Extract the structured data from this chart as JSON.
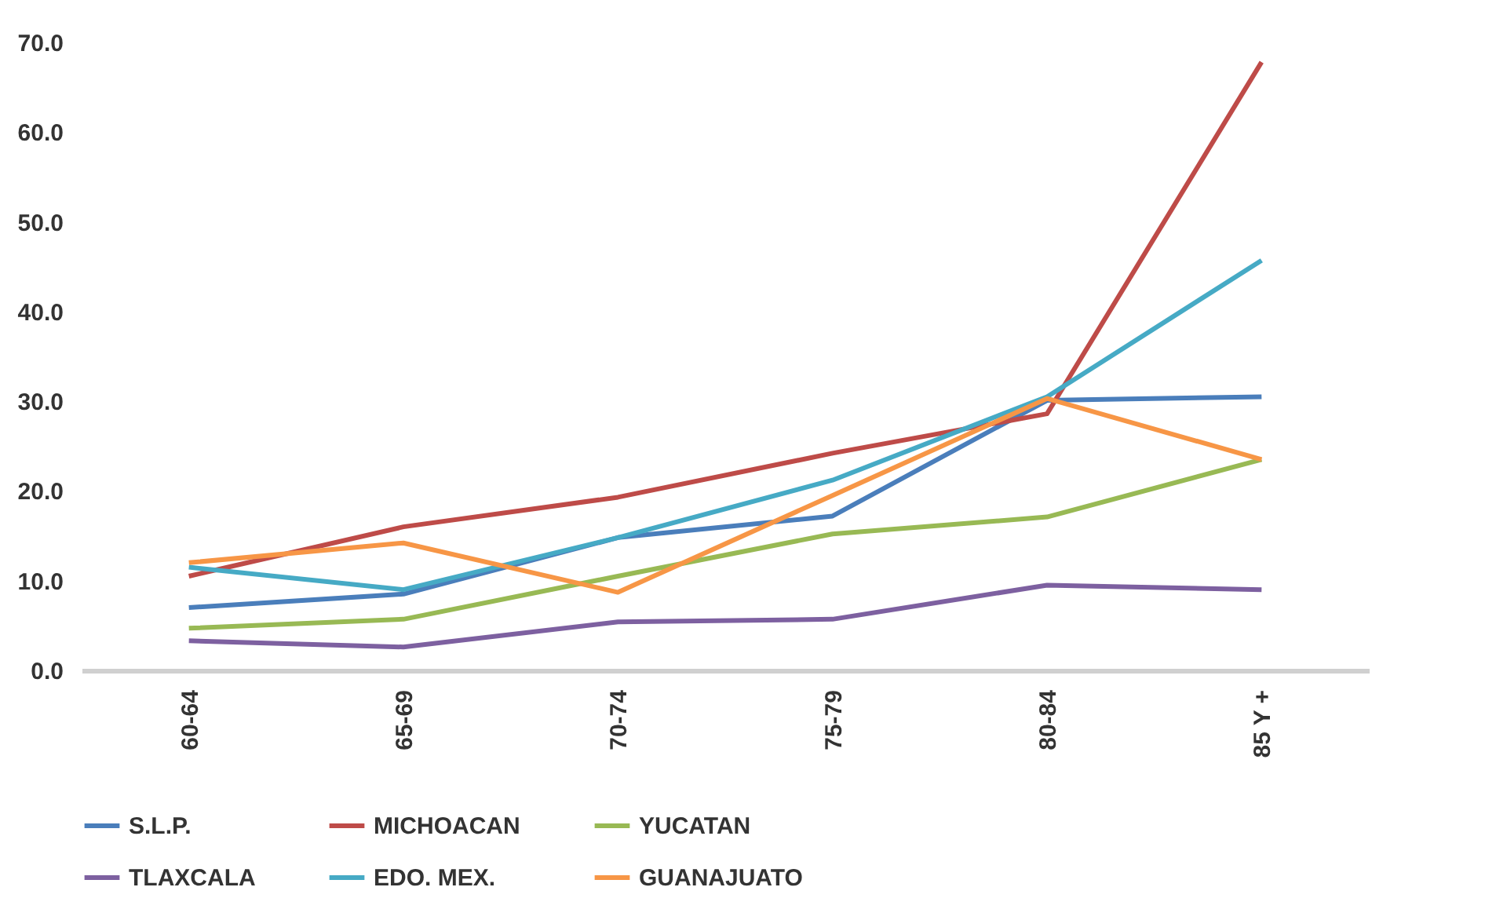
{
  "chart_data": {
    "type": "line",
    "categories": [
      "60-64",
      "65-69",
      "70-74",
      "75-79",
      "80-84",
      "85 Y +"
    ],
    "series": [
      {
        "name": "S.L.P.",
        "color": "#4a7ebb",
        "values": [
          7.0,
          8.5,
          14.8,
          17.2,
          30.1,
          30.5
        ]
      },
      {
        "name": "MICHOACAN",
        "color": "#be4b48",
        "values": [
          10.5,
          16.0,
          19.3,
          24.2,
          28.6,
          67.8
        ]
      },
      {
        "name": "YUCATAN",
        "color": "#98b954",
        "values": [
          4.7,
          5.7,
          10.5,
          15.2,
          17.1,
          23.5
        ]
      },
      {
        "name": "TLAXCALA",
        "color": "#7d60a0",
        "values": [
          3.3,
          2.6,
          5.4,
          5.7,
          9.5,
          9.0
        ]
      },
      {
        "name": "EDO. MEX.",
        "color": "#46aac5",
        "values": [
          11.5,
          9.0,
          14.8,
          21.2,
          30.5,
          45.7
        ]
      },
      {
        "name": "GUANAJUATO",
        "color": "#f79646",
        "values": [
          12.0,
          14.2,
          8.7,
          19.5,
          30.3,
          23.5
        ]
      }
    ],
    "ylim": [
      0,
      70
    ],
    "yticks": [
      {
        "value": 0,
        "label": "0.0"
      },
      {
        "value": 10,
        "label": "10.0"
      },
      {
        "value": 20,
        "label": "20.0"
      },
      {
        "value": 30,
        "label": "30.0"
      },
      {
        "value": 40,
        "label": "40.0"
      },
      {
        "value": 50,
        "label": "50.0"
      },
      {
        "value": 60,
        "label": "60.0"
      },
      {
        "value": 70,
        "label": "70.0"
      }
    ],
    "grid": false,
    "legend": "bottom",
    "marker": "none",
    "line_style": "solid"
  }
}
